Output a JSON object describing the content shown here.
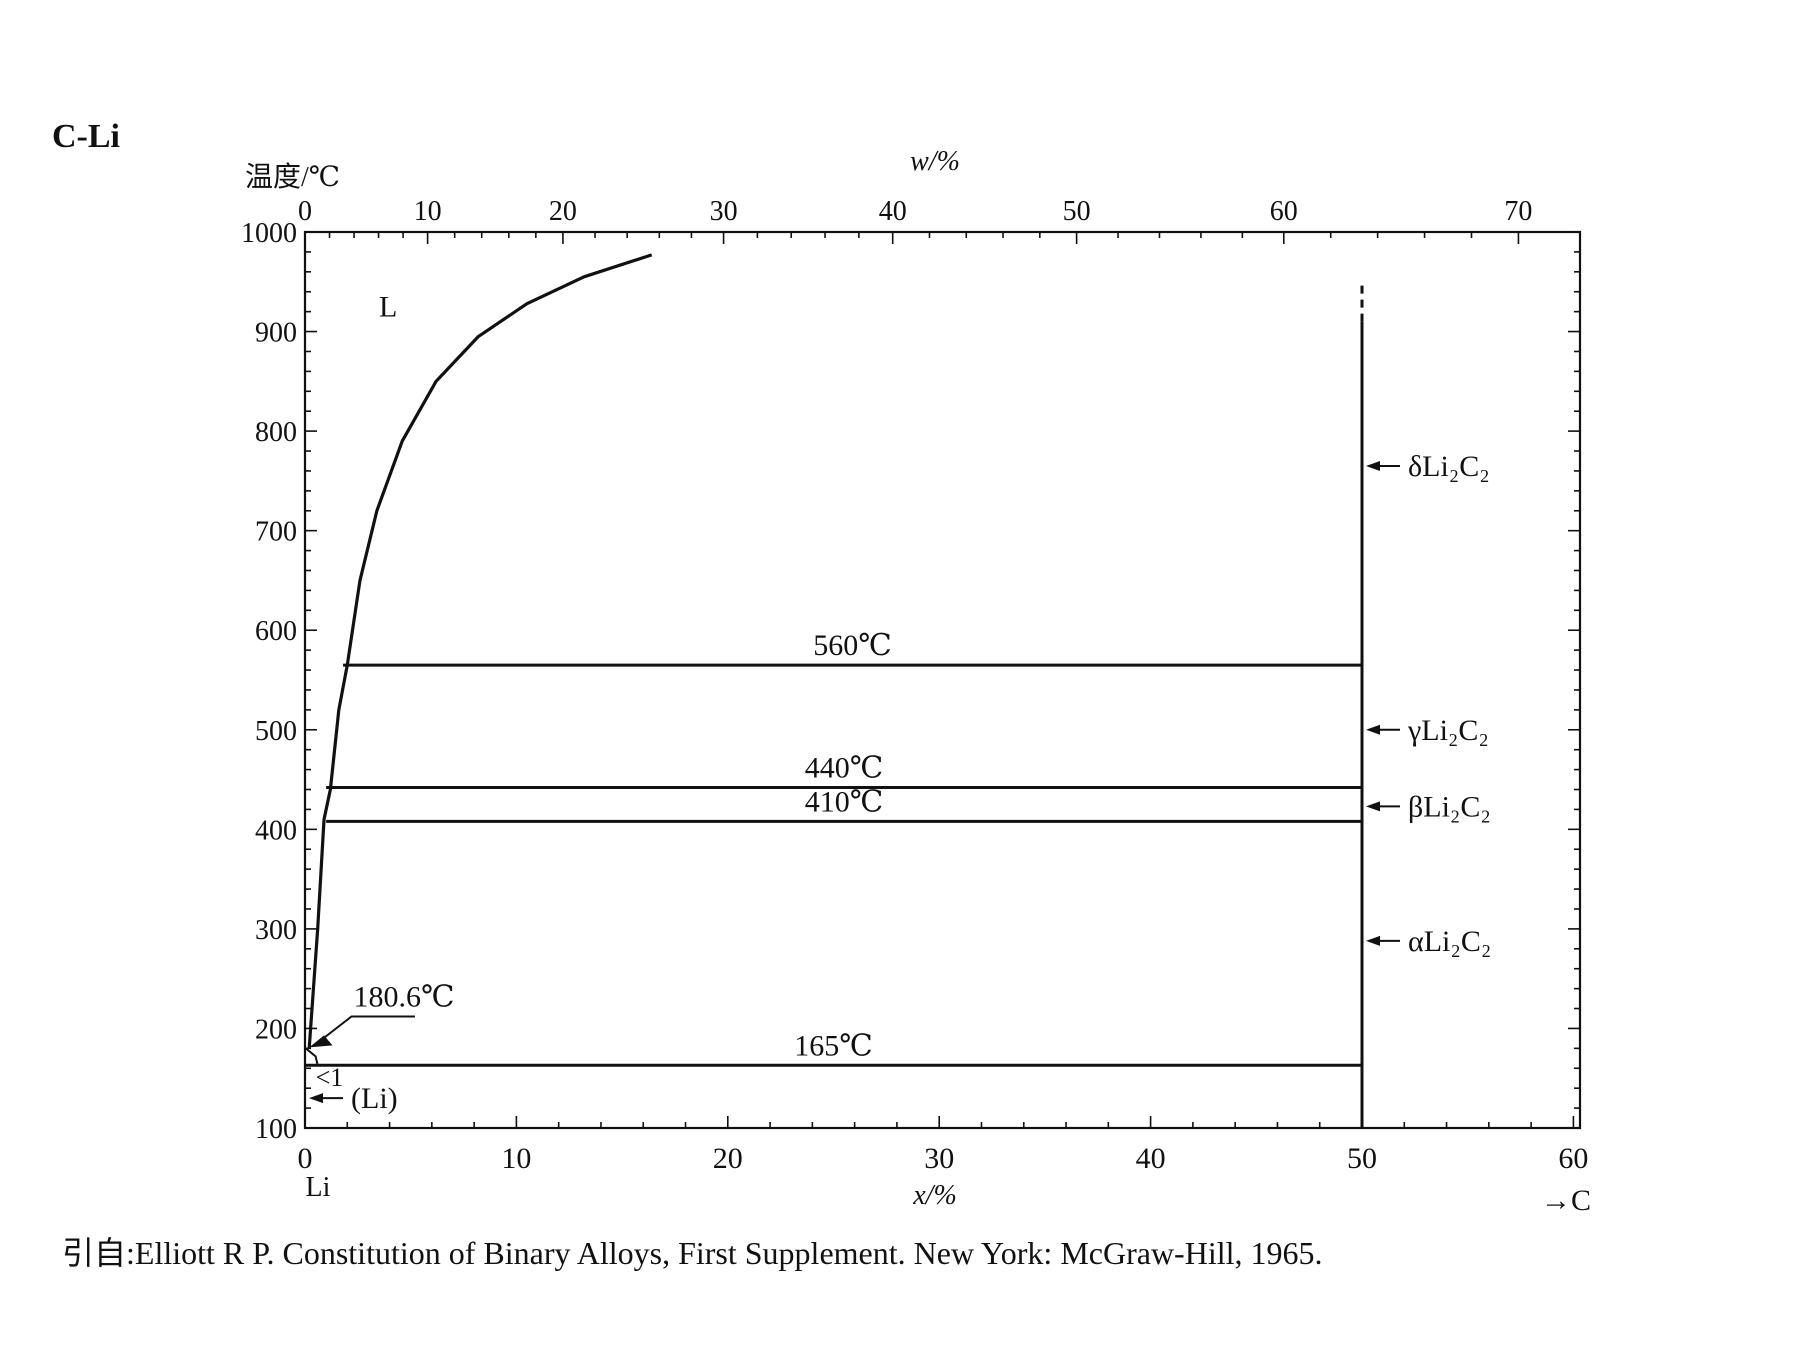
{
  "chart_data": {
    "type": "line",
    "title": "C-Li",
    "ylabel": "温度/℃",
    "xlabel": "x/%",
    "x2label": "w/%",
    "c_arrow": "→C",
    "element_left": "Li",
    "xlim": [
      0,
      60
    ],
    "ylim": [
      100,
      1000
    ],
    "x_ticks": [
      0,
      10,
      20,
      30,
      40,
      50,
      60
    ],
    "y_ticks": [
      100,
      200,
      300,
      400,
      500,
      600,
      700,
      800,
      900,
      1000
    ],
    "w_ticks": [
      {
        "w": 0,
        "x": 0
      },
      {
        "w": 10,
        "x": 5.8
      },
      {
        "w": 20,
        "x": 12.2
      },
      {
        "w": 30,
        "x": 19.8
      },
      {
        "w": 40,
        "x": 27.8
      },
      {
        "w": 50,
        "x": 36.5
      },
      {
        "w": 60,
        "x": 46.3
      },
      {
        "w": 70,
        "x": 57.4
      }
    ],
    "liquidus": [
      [
        0.2,
        180.6
      ],
      [
        0.6,
        300
      ],
      [
        0.9,
        410
      ],
      [
        1.2,
        440
      ],
      [
        1.6,
        520
      ],
      [
        2.0,
        565
      ],
      [
        2.6,
        650
      ],
      [
        3.4,
        720
      ],
      [
        4.6,
        790
      ],
      [
        6.2,
        850
      ],
      [
        8.2,
        895
      ],
      [
        10.5,
        928
      ],
      [
        13.2,
        955
      ],
      [
        16.4,
        977
      ]
    ],
    "compound": {
      "x": 50,
      "y_solid": [
        100,
        910
      ],
      "y_dashed": [
        910,
        950
      ]
    },
    "isotherms": [
      {
        "label": "560℃",
        "y": 565,
        "x_start": 1.8,
        "x_end": 50
      },
      {
        "label": "440℃",
        "y": 442,
        "x_start": 1.0,
        "x_end": 50
      },
      {
        "label": "410℃",
        "y": 408,
        "x_start": 1.0,
        "x_end": 50
      },
      {
        "label": "165℃",
        "y": 163,
        "x_start": 0,
        "x_end": 50
      }
    ],
    "phases": [
      {
        "label": "L",
        "x": 3.5,
        "y": 915
      },
      {
        "label": "δLi₂C₂",
        "x": 51.5,
        "y": 765,
        "arrow": true
      },
      {
        "label": "γLi₂C₂",
        "x": 51.5,
        "y": 500,
        "arrow": true
      },
      {
        "label": "βLi₂C₂",
        "x": 51.5,
        "y": 423,
        "arrow": true
      },
      {
        "label": "αLi₂C₂",
        "x": 51.5,
        "y": 288,
        "arrow": true
      },
      {
        "label": "(Li)",
        "x": 1.2,
        "y": 130,
        "arrow": true
      }
    ],
    "annotations": [
      {
        "label": "180.6℃",
        "x": 2.2,
        "y": 212
      },
      {
        "label": "<1",
        "x": 0.5,
        "y": 148
      }
    ]
  },
  "citation": "引自:Elliott R P. Constitution of Binary Alloys, First Supplement. New York: McGraw-Hill, 1965."
}
